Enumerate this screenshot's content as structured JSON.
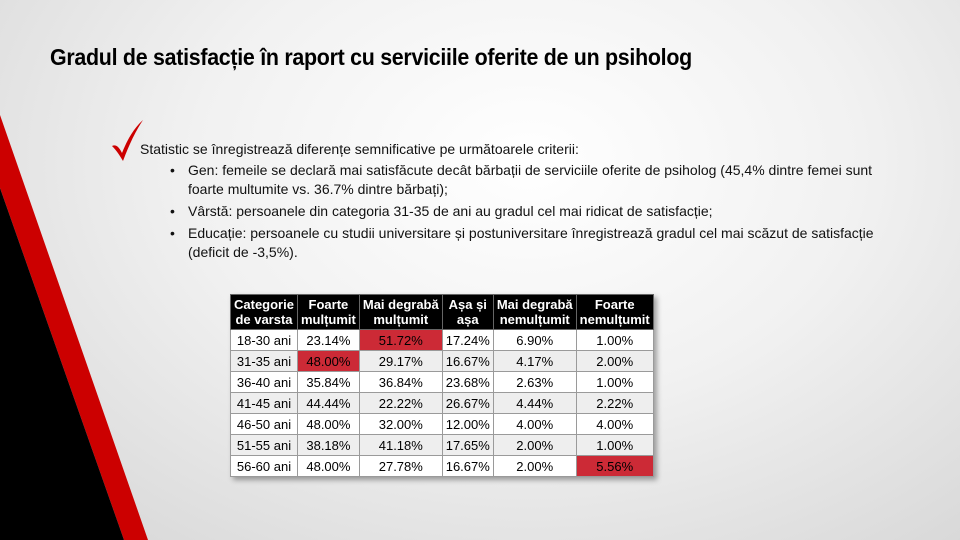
{
  "slide": {
    "title": "Gradul de satisfacție în raport cu serviciile oferite de un psiholog",
    "intro": "Statistic se înregistrează diferențe semnificative pe următoarele criterii:",
    "bullet_glyph": "•",
    "bullets": [
      "Gen: femeile se declară mai satisfăcute  decât bărbații de serviciile oferite de psiholog (45,4% dintre femei sunt foarte multumite vs. 36.7% dintre bărbați);",
      "Vârstă: persoanele din categoria 31-35 de ani au gradul cel mai ridicat de satisfacție;",
      "Educație: persoanele cu studii universitare și postuniversitare înregistrează gradul cel mai scăzut de satisfacție  (deficit de -3,5%)."
    ]
  },
  "colors": {
    "accent_red": "#cc0000",
    "highlight_red": "#cc2a36",
    "dark": "#000000"
  },
  "icons": {
    "checkmark": "red-checkmark-icon"
  },
  "table": {
    "headers": [
      [
        "Categorie",
        "de varsta"
      ],
      [
        "Foarte",
        "mulțumit"
      ],
      [
        "Mai degrabă",
        "mulțumit"
      ],
      [
        "Așa și",
        "așa"
      ],
      [
        "Mai degrabă",
        "nemulțumit"
      ],
      [
        "Foarte",
        "nemulțumit"
      ]
    ],
    "rows": [
      [
        "18-30 ani",
        "23.14%",
        "51.72%",
        "17.24%",
        "6.90%",
        "1.00%"
      ],
      [
        "31-35 ani",
        "48.00%",
        "29.17%",
        "16.67%",
        "4.17%",
        "2.00%"
      ],
      [
        "36-40 ani",
        "35.84%",
        "36.84%",
        "23.68%",
        "2.63%",
        "1.00%"
      ],
      [
        "41-45 ani",
        "44.44%",
        "22.22%",
        "26.67%",
        "4.44%",
        "2.22%"
      ],
      [
        "46-50 ani",
        "48.00%",
        "32.00%",
        "12.00%",
        "4.00%",
        "4.00%"
      ],
      [
        "51-55 ani",
        "38.18%",
        "41.18%",
        "17.65%",
        "2.00%",
        "1.00%"
      ],
      [
        "56-60 ani",
        "48.00%",
        "27.78%",
        "16.67%",
        "2.00%",
        "5.56%"
      ]
    ],
    "highlighted_cells": [
      [
        0,
        2
      ],
      [
        1,
        1
      ],
      [
        6,
        5
      ]
    ]
  }
}
